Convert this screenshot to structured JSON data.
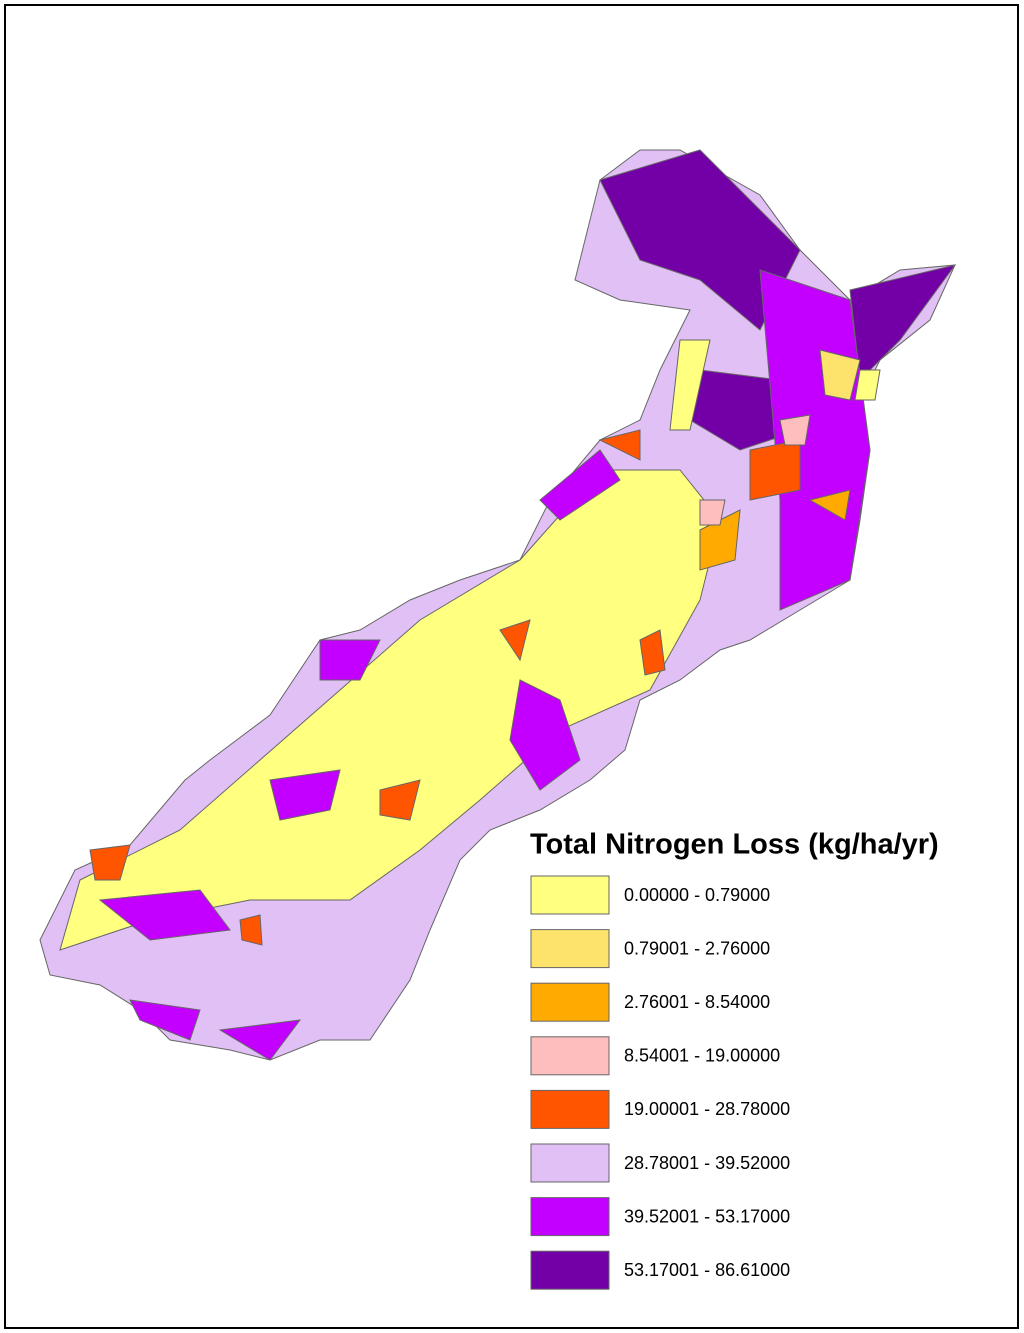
{
  "legend": {
    "title": "Total Nitrogen Loss (kg/ha/yr)",
    "items": [
      {
        "label": "0.00000 - 0.79000",
        "color": "#ffff80"
      },
      {
        "label": "0.79001 - 2.76000",
        "color": "#fde26b"
      },
      {
        "label": "2.76001 - 8.54000",
        "color": "#ffaa00"
      },
      {
        "label": "8.54001 - 19.00000",
        "color": "#ffbebe"
      },
      {
        "label": "19.00001 - 28.78000",
        "color": "#ff5500"
      },
      {
        "label": "28.78001 - 39.52000",
        "color": "#e1c0f5"
      },
      {
        "label": "39.52001 - 53.17000",
        "color": "#c300ff"
      },
      {
        "label": "53.17001 - 86.61000",
        "color": "#7300a6"
      }
    ]
  }
}
